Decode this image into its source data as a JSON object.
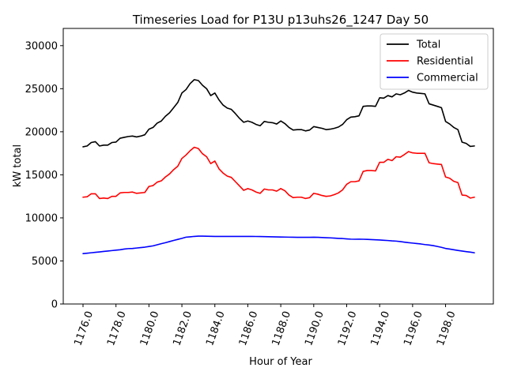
{
  "chart_data": {
    "type": "line",
    "title": "Timeseries Load for P13U p13uhs26_1247  Day 50",
    "xlabel": "Hour of Year",
    "ylabel": "kW total",
    "xlim": [
      1174.8,
      1200.9
    ],
    "ylim": [
      0,
      32000
    ],
    "x_ticks": [
      1176,
      1178,
      1180,
      1182,
      1184,
      1186,
      1188,
      1190,
      1192,
      1194,
      1196,
      1198
    ],
    "x_tick_labels": [
      "1176.0",
      "1178.0",
      "1180.0",
      "1182.0",
      "1184.0",
      "1186.0",
      "1188.0",
      "1190.0",
      "1192.0",
      "1194.0",
      "1196.0",
      "1198.0"
    ],
    "y_ticks": [
      0,
      5000,
      10000,
      15000,
      20000,
      25000,
      30000
    ],
    "y_tick_labels": [
      "0",
      "5000",
      "10000",
      "15000",
      "20000",
      "25000",
      "30000"
    ],
    "legend_position": "top-right",
    "x": [
      1176.0,
      1176.25,
      1176.5,
      1176.75,
      1177.0,
      1177.25,
      1177.5,
      1177.75,
      1178.0,
      1178.25,
      1178.5,
      1178.75,
      1179.0,
      1179.25,
      1179.5,
      1179.75,
      1180.0,
      1180.25,
      1180.5,
      1180.75,
      1181.0,
      1181.25,
      1181.5,
      1181.75,
      1182.0,
      1182.25,
      1182.5,
      1182.75,
      1183.0,
      1183.25,
      1183.5,
      1183.75,
      1184.0,
      1184.25,
      1184.5,
      1184.75,
      1185.0,
      1185.25,
      1185.5,
      1185.75,
      1186.0,
      1186.25,
      1186.5,
      1186.75,
      1187.0,
      1187.25,
      1187.5,
      1187.75,
      1188.0,
      1188.25,
      1188.5,
      1188.75,
      1189.0,
      1189.25,
      1189.5,
      1189.75,
      1190.0,
      1190.25,
      1190.5,
      1190.75,
      1191.0,
      1191.25,
      1191.5,
      1191.75,
      1192.0,
      1192.25,
      1192.5,
      1192.75,
      1193.0,
      1193.25,
      1193.5,
      1193.75,
      1194.0,
      1194.25,
      1194.5,
      1194.75,
      1195.0,
      1195.25,
      1195.5,
      1195.75,
      1196.0,
      1196.25,
      1196.5,
      1196.75,
      1197.0,
      1197.25,
      1197.5,
      1197.75,
      1198.0,
      1198.25,
      1198.5,
      1198.75,
      1199.0,
      1199.25,
      1199.5,
      1199.75
    ],
    "series": [
      {
        "name": "Total",
        "color": "#000000",
        "values": [
          18250,
          18350,
          18750,
          18850,
          18350,
          18450,
          18450,
          18750,
          18800,
          19250,
          19350,
          19450,
          19500,
          19400,
          19500,
          19650,
          20300,
          20500,
          21000,
          21250,
          21800,
          22200,
          22800,
          23400,
          24500,
          24900,
          25600,
          26050,
          25950,
          25400,
          25000,
          24200,
          24500,
          23700,
          23100,
          22750,
          22600,
          22100,
          21550,
          21100,
          21250,
          21100,
          20850,
          20700,
          21200,
          21100,
          21050,
          20900,
          21250,
          20950,
          20500,
          20200,
          20250,
          20250,
          20100,
          20200,
          20600,
          20500,
          20400,
          20250,
          20300,
          20400,
          20550,
          20850,
          21400,
          21700,
          21750,
          21850,
          22950,
          23000,
          23000,
          22950,
          23950,
          23900,
          24200,
          24050,
          24400,
          24300,
          24500,
          24800,
          24600,
          24500,
          24450,
          24400,
          23250,
          23100,
          22950,
          22800,
          21200,
          20900,
          20500,
          20250,
          18800,
          18650,
          18300,
          18350
        ]
      },
      {
        "name": "Residential",
        "color": "#ff0000",
        "values": [
          12400,
          12450,
          12800,
          12800,
          12250,
          12300,
          12250,
          12500,
          12500,
          12900,
          12950,
          12950,
          13000,
          12850,
          12900,
          12950,
          13650,
          13750,
          14150,
          14300,
          14750,
          15100,
          15600,
          16000,
          16900,
          17300,
          17800,
          18200,
          18050,
          17450,
          17100,
          16300,
          16600,
          15700,
          15200,
          14850,
          14700,
          14200,
          13700,
          13200,
          13400,
          13250,
          13000,
          12850,
          13350,
          13250,
          13250,
          13100,
          13400,
          13150,
          12650,
          12350,
          12400,
          12400,
          12250,
          12350,
          12850,
          12750,
          12600,
          12500,
          12550,
          12700,
          12900,
          13250,
          13900,
          14200,
          14200,
          14300,
          15400,
          15500,
          15500,
          15450,
          16450,
          16450,
          16800,
          16650,
          17100,
          17050,
          17350,
          17700,
          17550,
          17500,
          17500,
          17500,
          16400,
          16300,
          16250,
          16200,
          14750,
          14600,
          14250,
          14100,
          12650,
          12600,
          12300,
          12400
        ]
      },
      {
        "name": "Commercial",
        "color": "#0000ff",
        "values": [
          5850,
          5900,
          5950,
          6000,
          6050,
          6100,
          6150,
          6200,
          6250,
          6300,
          6380,
          6430,
          6450,
          6500,
          6550,
          6600,
          6680,
          6750,
          6880,
          7000,
          7120,
          7250,
          7380,
          7500,
          7620,
          7760,
          7800,
          7850,
          7880,
          7880,
          7870,
          7860,
          7850,
          7850,
          7850,
          7850,
          7850,
          7850,
          7850,
          7850,
          7850,
          7850,
          7840,
          7830,
          7820,
          7810,
          7800,
          7790,
          7780,
          7770,
          7760,
          7750,
          7740,
          7740,
          7740,
          7740,
          7750,
          7740,
          7720,
          7700,
          7680,
          7650,
          7620,
          7600,
          7560,
          7530,
          7520,
          7530,
          7520,
          7500,
          7480,
          7460,
          7430,
          7400,
          7370,
          7330,
          7300,
          7250,
          7180,
          7120,
          7070,
          7020,
          6970,
          6900,
          6850,
          6780,
          6680,
          6580,
          6450,
          6380,
          6300,
          6220,
          6150,
          6080,
          6020,
          5950
        ]
      }
    ]
  }
}
